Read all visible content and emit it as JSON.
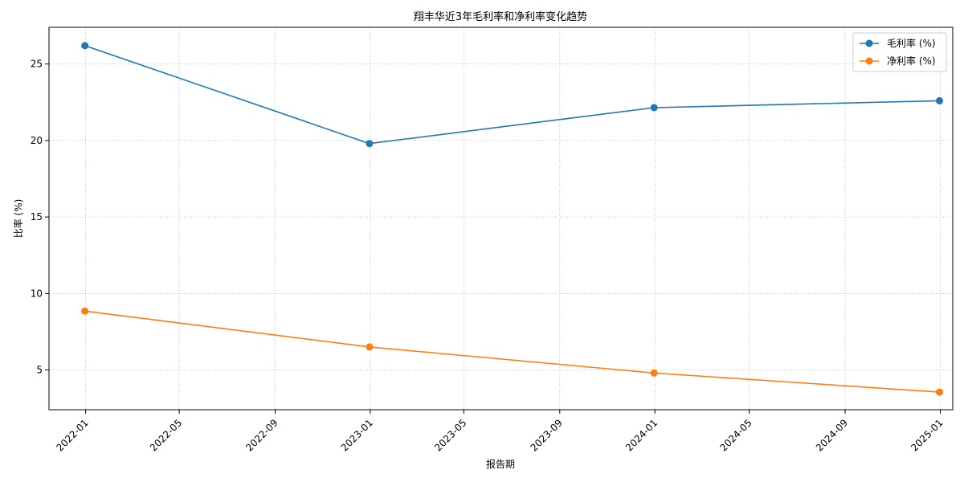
{
  "chart_data": {
    "type": "line",
    "title": "翔丰华近3年毛利率和净利率变化趋势",
    "xlabel": "报告期",
    "ylabel": "比率 (%)",
    "x": [
      "2021-12-31",
      "2022-12-31",
      "2023-12-31",
      "2024-12-31"
    ],
    "series": [
      {
        "name": "毛利率 (%)",
        "color": "#1f77b4",
        "values": [
          26.2,
          19.8,
          22.15,
          22.6
        ]
      },
      {
        "name": "净利率 (%)",
        "color": "#ff7f0e",
        "values": [
          8.85,
          6.5,
          4.8,
          3.55
        ]
      }
    ],
    "xlim": [
      "2021-11-15",
      "2025-01-17"
    ],
    "ylim": [
      2.4,
      27.4
    ],
    "x_ticks": [
      "2022-01",
      "2022-05",
      "2022-09",
      "2023-01",
      "2023-05",
      "2023-09",
      "2024-01",
      "2024-05",
      "2024-09",
      "2025-01"
    ],
    "y_ticks": [
      "5",
      "10",
      "15",
      "20",
      "25"
    ],
    "grid": true,
    "legend_position": "top-right"
  }
}
